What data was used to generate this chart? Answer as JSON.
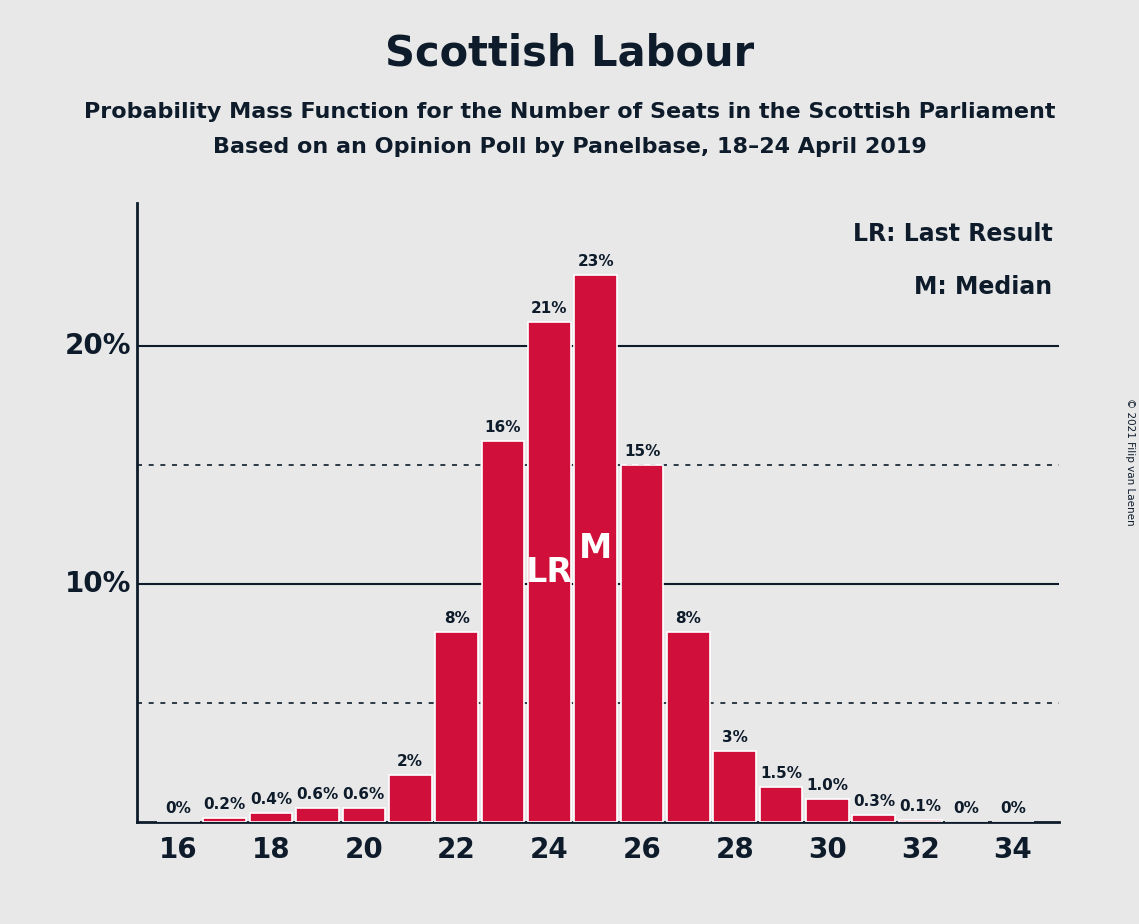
{
  "title": "Scottish Labour",
  "subtitle1": "Probability Mass Function for the Number of Seats in the Scottish Parliament",
  "subtitle2": "Based on an Opinion Poll by Panelbase, 18–24 April 2019",
  "copyright": "© 2021 Filip van Laenen",
  "seats": [
    16,
    17,
    18,
    19,
    20,
    21,
    22,
    23,
    24,
    25,
    26,
    27,
    28,
    29,
    30,
    31,
    32,
    33,
    34
  ],
  "probabilities": [
    0.0,
    0.2,
    0.4,
    0.6,
    0.6,
    2.0,
    8.0,
    16.0,
    21.0,
    23.0,
    15.0,
    8.0,
    3.0,
    1.5,
    1.0,
    0.3,
    0.1,
    0.0,
    0.0
  ],
  "labels": [
    "0%",
    "0.2%",
    "0.4%",
    "0.6%",
    "0.6%",
    "2%",
    "8%",
    "16%",
    "21%",
    "23%",
    "15%",
    "8%",
    "3%",
    "1.5%",
    "1.0%",
    "0.3%",
    "0.1%",
    "0%",
    "0%"
  ],
  "bar_color": "#d0103a",
  "background_color": "#e8e8e8",
  "LR_seat": 24,
  "M_seat": 25,
  "legend_text": [
    "LR: Last Result",
    "M: Median"
  ],
  "xlim": [
    15.1,
    35.0
  ],
  "ylim": [
    0,
    26
  ],
  "xticks": [
    16,
    18,
    20,
    22,
    24,
    26,
    28,
    30,
    32,
    34
  ],
  "solid_yticks": [
    10,
    20
  ],
  "dotted_yticks": [
    5,
    15
  ],
  "title_fontsize": 30,
  "subtitle_fontsize": 16,
  "axis_tick_fontsize": 20,
  "label_fontsize": 11,
  "legend_fontsize": 17,
  "LR_label_fontsize": 24,
  "M_label_fontsize": 24,
  "spine_color": "#0d1b2a",
  "text_color": "#0d1b2a"
}
